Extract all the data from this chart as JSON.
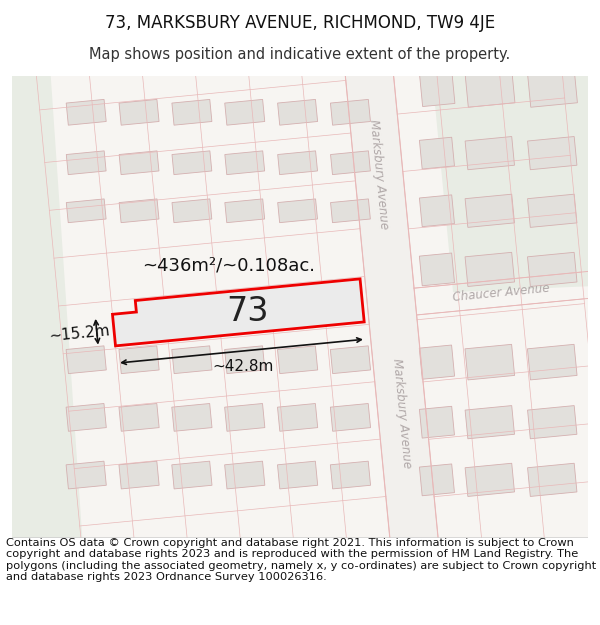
{
  "title": "73, MARKSBURY AVENUE, RICHMOND, TW9 4JE",
  "subtitle": "Map shows position and indicative extent of the property.",
  "footer": "Contains OS data © Crown copyright and database right 2021. This information is subject to Crown copyright and database rights 2023 and is reproduced with the permission of HM Land Registry. The polygons (including the associated geometry, namely x, y co-ordinates) are subject to Crown copyright and database rights 2023 Ordnance Survey 100026316.",
  "area_label": "~436m²/~0.108ac.",
  "width_label": "~42.8m",
  "height_label": "~15.2m",
  "property_number": "73",
  "map_bg": "#f7f5f2",
  "plot_fill": "#f0eeeb",
  "plot_stroke": "#e8b8b8",
  "building_fill": "#e2e0dc",
  "building_stroke": "#d4b0b0",
  "property_fill": "#ebebeb",
  "property_stroke": "#ee0000",
  "green_fill": "#e8ece4",
  "road_fill": "#f5f3f0",
  "street_label_color": "#b0a8a8",
  "title_fontsize": 12,
  "subtitle_fontsize": 10.5,
  "footer_fontsize": 8.2,
  "map_rotation_deg": 5.5
}
